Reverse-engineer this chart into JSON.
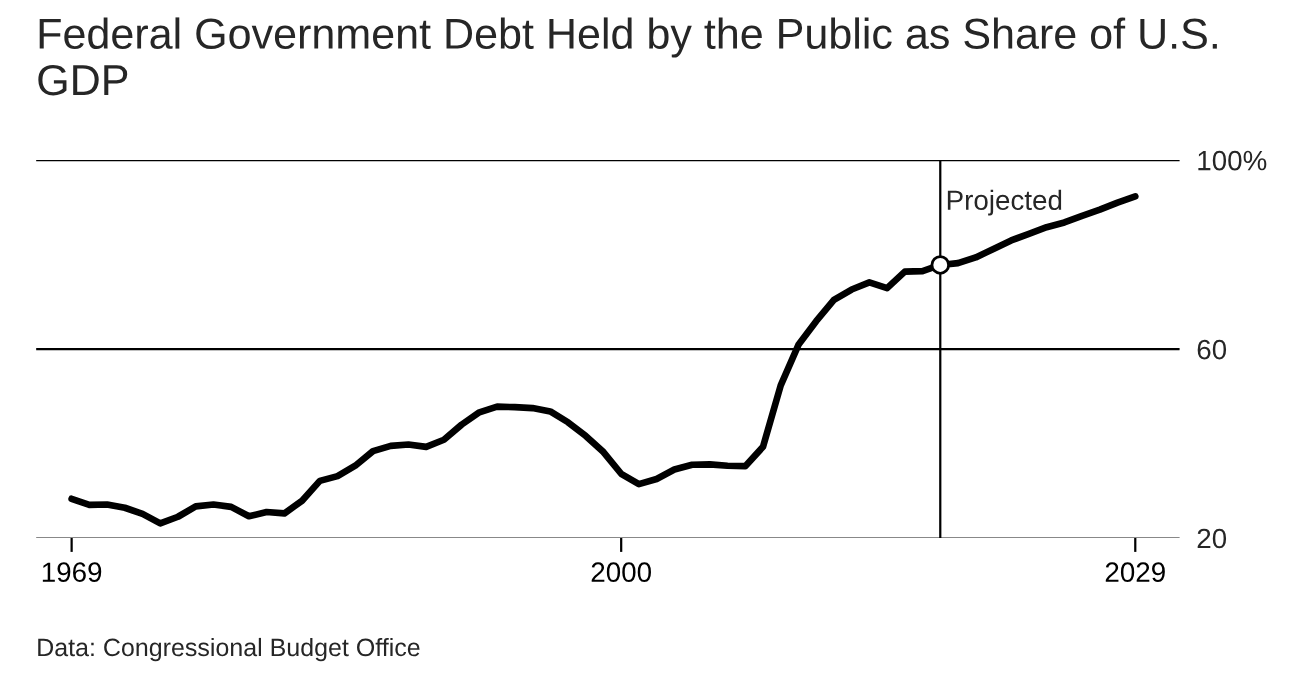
{
  "chart_data": {
    "type": "line",
    "title": "Federal Government Debt Held by the Public as Share of U.S. GDP",
    "x": [
      1969,
      1970,
      1971,
      1972,
      1973,
      1974,
      1975,
      1976,
      1977,
      1978,
      1979,
      1980,
      1981,
      1982,
      1983,
      1984,
      1985,
      1986,
      1987,
      1988,
      1989,
      1990,
      1991,
      1992,
      1993,
      1994,
      1995,
      1996,
      1997,
      1998,
      1999,
      2000,
      2001,
      2002,
      2003,
      2004,
      2005,
      2006,
      2007,
      2008,
      2009,
      2010,
      2011,
      2012,
      2013,
      2014,
      2015,
      2016,
      2017,
      2018,
      2019,
      2020,
      2021,
      2022,
      2023,
      2024,
      2025,
      2026,
      2027,
      2028,
      2029
    ],
    "series": [
      {
        "color": "#000000",
        "values": [
          28.3,
          27.0,
          27.1,
          26.4,
          25.1,
          23.1,
          24.5,
          26.7,
          27.1,
          26.6,
          24.6,
          25.5,
          25.2,
          27.9,
          32.1,
          33.1,
          35.3,
          38.4,
          39.5,
          39.8,
          39.3,
          40.8,
          44.0,
          46.6,
          47.8,
          47.7,
          47.5,
          46.8,
          44.5,
          41.6,
          38.2,
          33.6,
          31.4,
          32.5,
          34.5,
          35.5,
          35.6,
          35.3,
          35.2,
          39.3,
          52.3,
          60.9,
          65.9,
          70.4,
          72.6,
          74.1,
          72.9,
          76.4,
          76.5,
          77.8,
          78.2,
          79.4,
          81.2,
          83.0,
          84.4,
          85.8,
          86.8,
          88.2,
          89.5,
          91.0,
          92.3
        ]
      },
      {
        "type": "scatter",
        "marker": "circle",
        "color": "#ffffff",
        "x": [
          2018
        ],
        "values": [
          77.8
        ]
      }
    ],
    "xlim": [
      1967,
      2031.5
    ],
    "xticks": [
      1969,
      2000,
      2029
    ],
    "ylim": [
      20,
      100
    ],
    "yticks": [
      20,
      60,
      {
        "value": 100,
        "label": "100%"
      }
    ],
    "grid": "y",
    "ref_lines": [
      {
        "axis": "x",
        "value": 2018,
        "label": "Projected",
        "color": "#000000"
      }
    ],
    "annotations": [
      "Data: Congressional Budget Office"
    ]
  }
}
